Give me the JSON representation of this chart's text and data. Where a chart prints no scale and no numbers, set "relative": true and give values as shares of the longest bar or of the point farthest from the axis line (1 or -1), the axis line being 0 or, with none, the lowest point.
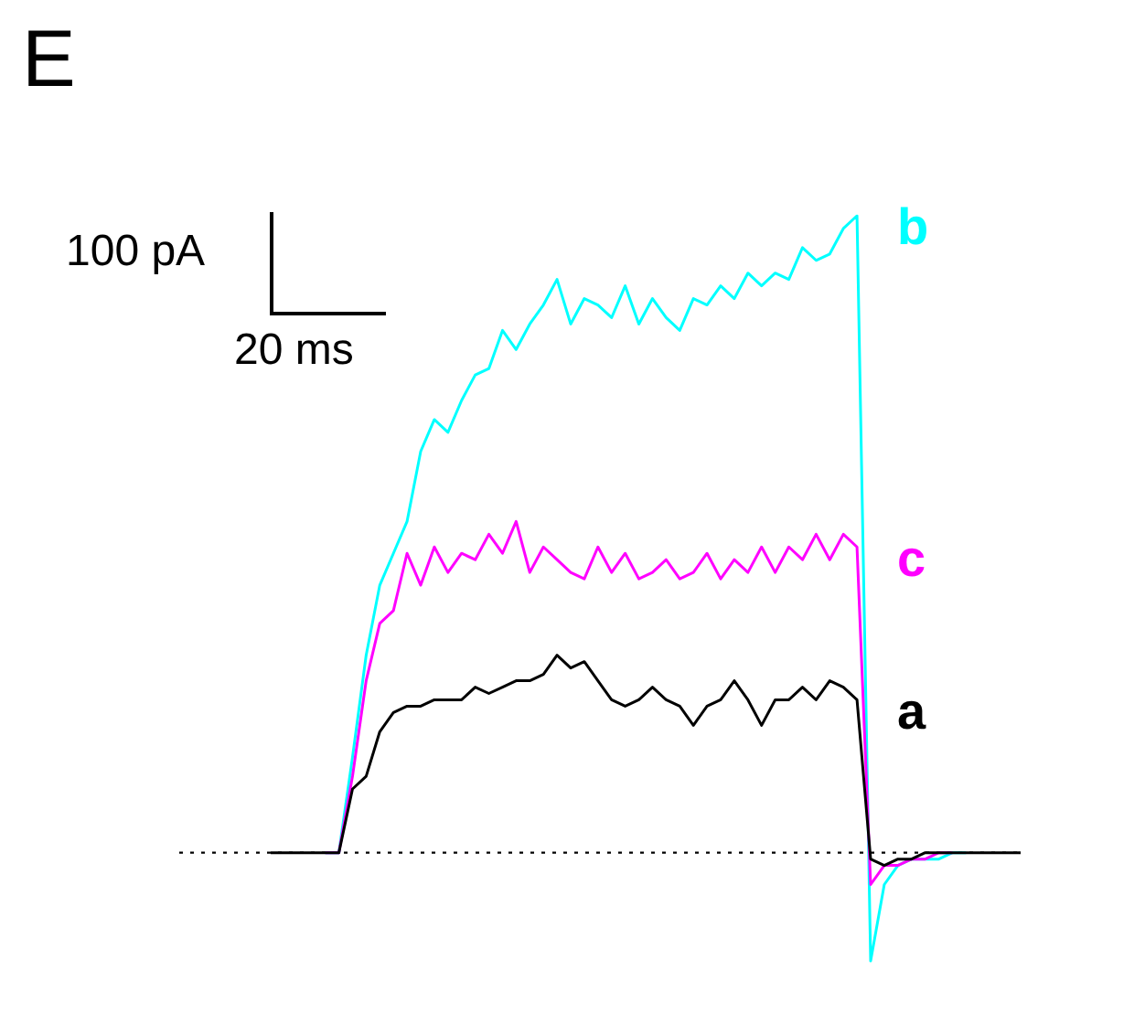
{
  "chart_data": {
    "type": "line",
    "title": "E",
    "relative": true,
    "legend": false,
    "tick_labels": false,
    "marker": "none",
    "line_style": "solid",
    "categories": [
      null,
      null,
      null,
      null,
      null,
      null,
      null,
      null,
      null,
      null,
      null,
      null,
      null,
      null,
      null,
      null,
      null,
      null,
      null,
      null,
      null,
      null,
      null,
      null,
      null,
      null,
      null,
      null,
      null,
      null,
      null,
      null,
      null,
      null,
      null,
      null,
      null,
      null,
      null,
      null,
      null,
      null,
      null,
      null,
      null,
      null,
      null,
      null,
      null,
      null,
      null,
      null,
      null,
      null,
      null,
      null
    ],
    "series": [
      {
        "name": "b",
        "color": "#00ffff",
        "values": [
          null,
          null,
          null,
          null,
          0,
          0,
          0.15,
          0.31,
          0.42,
          0.47,
          0.52,
          0.63,
          0.68,
          0.66,
          0.71,
          0.75,
          0.76,
          0.82,
          0.79,
          0.83,
          0.86,
          0.9,
          0.83,
          0.87,
          0.86,
          0.84,
          0.89,
          0.83,
          0.87,
          0.84,
          0.82,
          0.87,
          0.86,
          0.89,
          0.87,
          0.91,
          0.89,
          0.91,
          0.9,
          0.95,
          0.93,
          0.94,
          0.98,
          1,
          -0.17,
          -0.05,
          -0.02,
          -0.01,
          -0.01,
          -0.01,
          0,
          0,
          null,
          null,
          null,
          null
        ]
      },
      {
        "name": "c",
        "color": "#ff00ff",
        "values": [
          null,
          null,
          null,
          null,
          0,
          0,
          0.12,
          0.27,
          0.36,
          0.38,
          0.47,
          0.42,
          0.48,
          0.44,
          0.47,
          0.46,
          0.5,
          0.47,
          0.52,
          0.44,
          0.48,
          0.46,
          0.44,
          0.43,
          0.48,
          0.44,
          0.47,
          0.43,
          0.44,
          0.46,
          0.43,
          0.44,
          0.47,
          0.43,
          0.46,
          0.44,
          0.48,
          0.44,
          0.48,
          0.46,
          0.5,
          0.46,
          0.5,
          0.48,
          -0.05,
          -0.02,
          -0.02,
          -0.01,
          -0.01,
          0,
          0,
          null,
          null,
          null,
          null,
          null
        ]
      },
      {
        "name": "a",
        "color": "#000000",
        "values": [
          0,
          0,
          0,
          0,
          0,
          0,
          0.1,
          0.12,
          0.19,
          0.22,
          0.23,
          0.23,
          0.24,
          0.24,
          0.24,
          0.26,
          0.25,
          0.26,
          0.27,
          0.27,
          0.28,
          0.31,
          0.29,
          0.3,
          0.27,
          0.24,
          0.23,
          0.24,
          0.26,
          0.24,
          0.23,
          0.2,
          0.23,
          0.24,
          0.27,
          0.24,
          0.2,
          0.24,
          0.24,
          0.26,
          0.24,
          0.27,
          0.26,
          0.24,
          -0.01,
          -0.02,
          -0.01,
          -0.01,
          0,
          0,
          0,
          0,
          0,
          0,
          0,
          0
        ]
      }
    ],
    "ref_lines": [
      {
        "axis": "y",
        "value": 0,
        "color": "#000000",
        "line_style": "dotted"
      }
    ],
    "annotations": [
      "100 pA",
      "20 ms"
    ]
  }
}
